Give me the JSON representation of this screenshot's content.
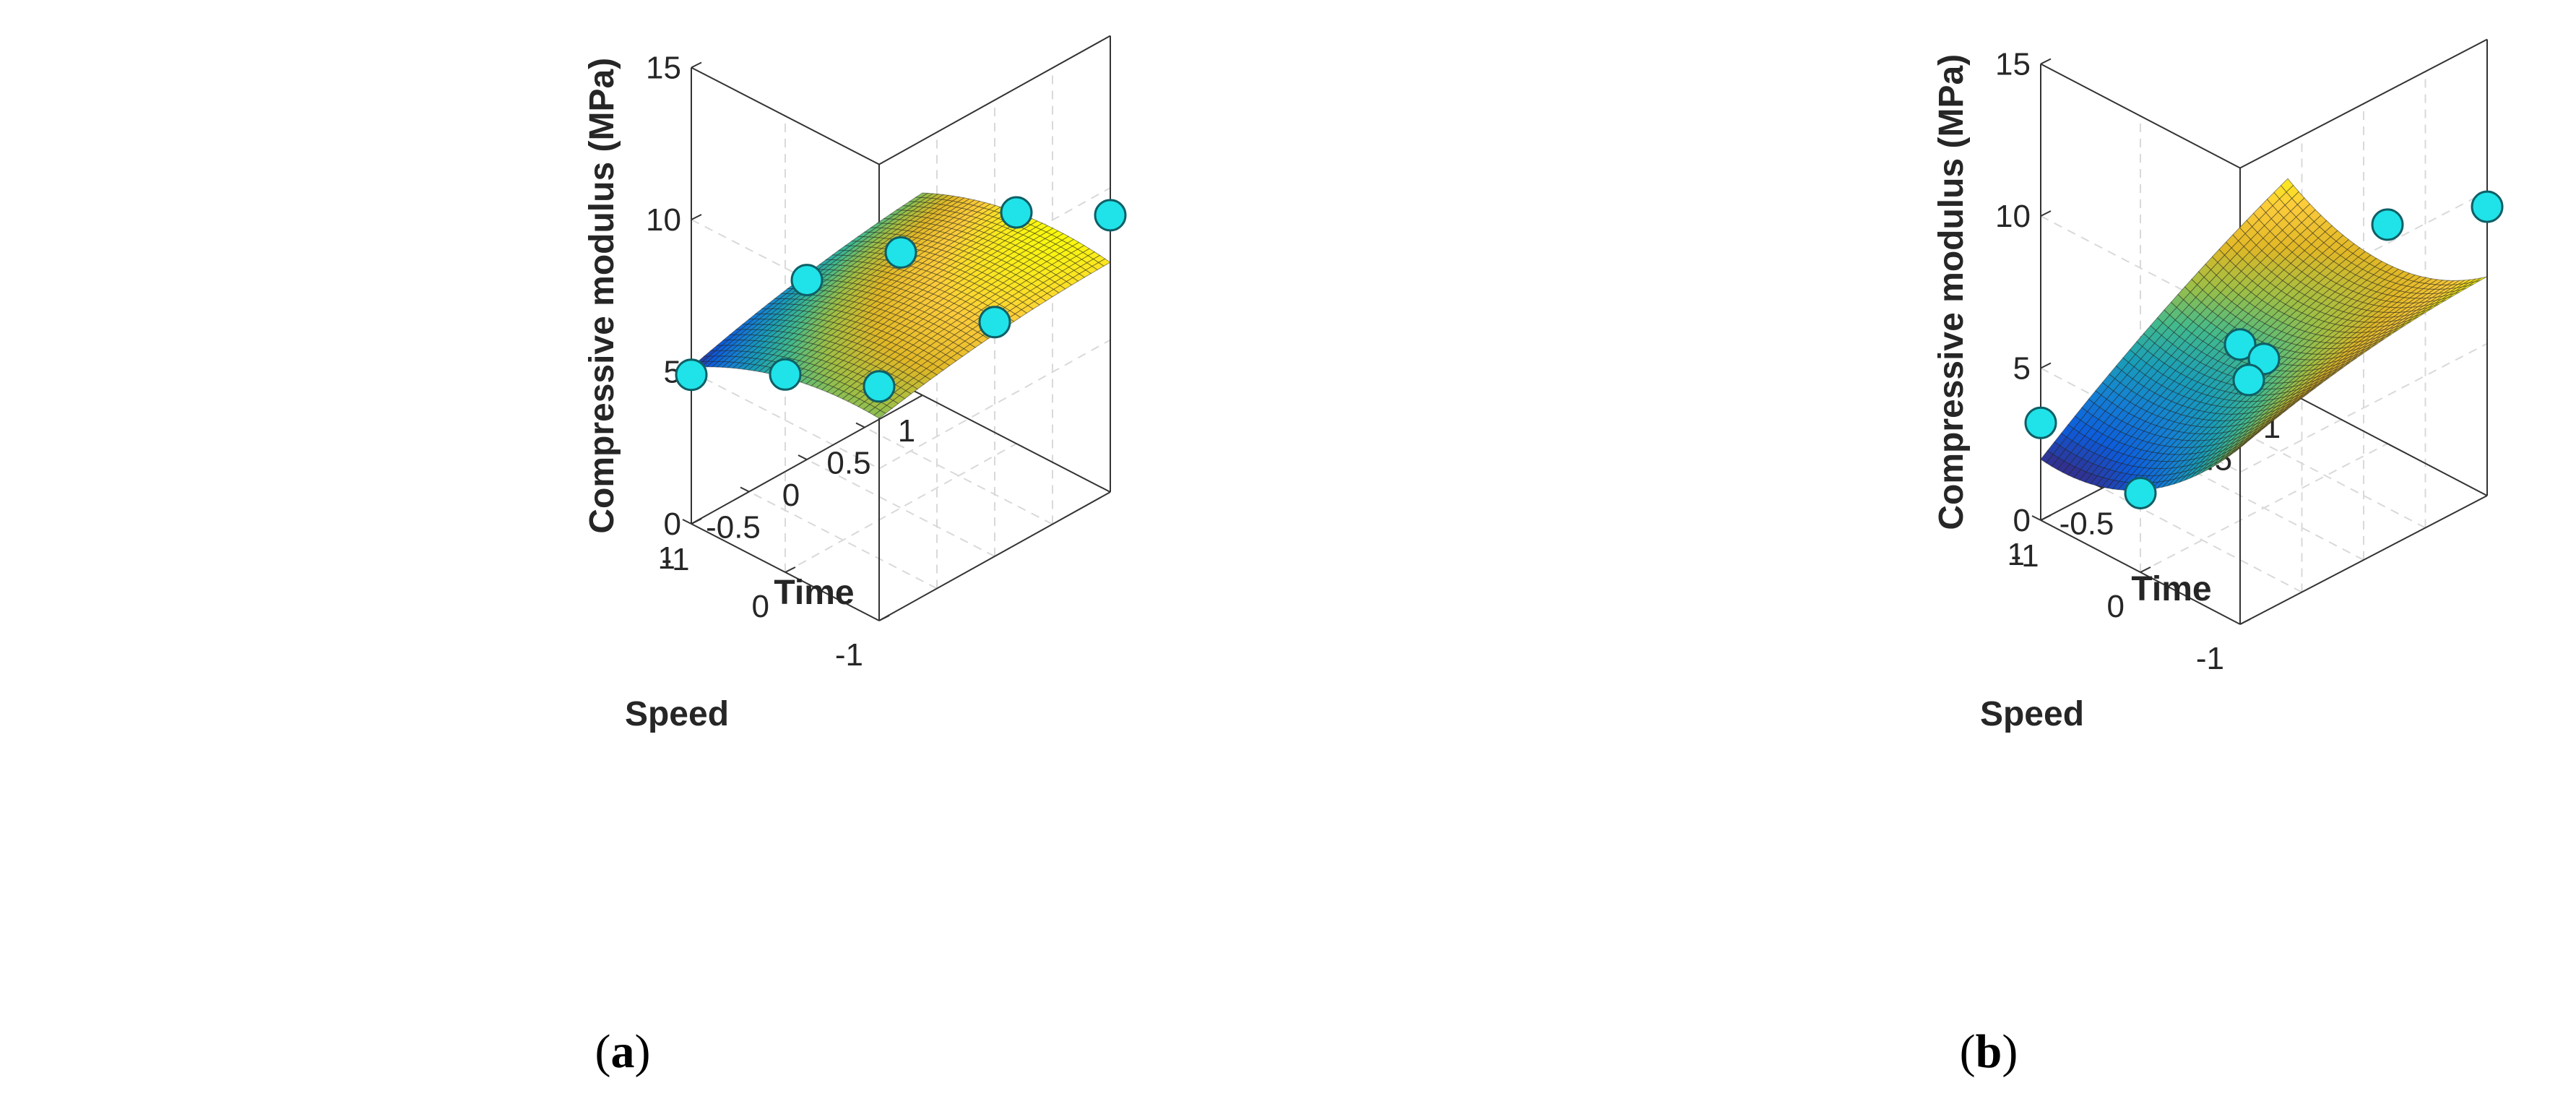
{
  "figure": {
    "panels": [
      "(a)",
      "(b)"
    ]
  },
  "chart_data": [
    {
      "type": "surface",
      "panel": "(a)",
      "caption_letter": "a",
      "zlabel": "Compressive modulus (MPa)",
      "xlabel": "Time",
      "ylabel": "Speed",
      "xlim": [
        -1,
        1
      ],
      "ylim": [
        -1,
        1
      ],
      "zlim": [
        0,
        15
      ],
      "xticks": [
        "-1",
        "-0.5",
        "0",
        "0.5",
        "1"
      ],
      "yticks": [
        "-1",
        "0",
        "1"
      ],
      "zticks": [
        "0",
        "5",
        "10",
        "15"
      ],
      "grid": true,
      "colormap": "parula",
      "surface_coefficients": {
        "b0": 7.2,
        "b_time": 0.6,
        "b_speed": -0.6,
        "b_time_speed": 0.15,
        "b_time2": -0.2,
        "b_speed2": -0.5
      },
      "points": [
        {
          "time": -1,
          "speed": 1,
          "modulus": 4.9
        },
        {
          "time": -1,
          "speed": 0,
          "modulus": 6.5
        },
        {
          "time": -1,
          "speed": -1,
          "modulus": 7.7
        },
        {
          "time": 0,
          "speed": 1,
          "modulus": 5.9
        },
        {
          "time": 0,
          "speed": 0,
          "modulus": 8.4
        },
        {
          "time": 0,
          "speed": -1,
          "modulus": 7.7
        },
        {
          "time": 1,
          "speed": 0,
          "modulus": 7.6
        },
        {
          "time": 1,
          "speed": -1,
          "modulus": 9.1
        }
      ]
    },
    {
      "type": "surface",
      "panel": "(b)",
      "caption_letter": "b",
      "zlabel": "Compressive modulus (MPa)",
      "xlabel": "Time",
      "ylabel": "Speed",
      "xlim": [
        -1,
        1
      ],
      "ylim": [
        -1,
        1
      ],
      "zlim": [
        0,
        15
      ],
      "xticks": [
        "-1",
        "-0.5",
        "0",
        "0.5",
        "1"
      ],
      "yticks": [
        "-1",
        "0",
        "1"
      ],
      "zticks": [
        "0",
        "5",
        "10",
        "15"
      ],
      "grid": true,
      "colormap": "parula",
      "surface_coefficients": {
        "b0": 4.6,
        "b_time": 1.6,
        "b_speed": -1.0,
        "b_time_speed": 0.9,
        "b_time2": -0.3,
        "b_speed2": 1.2
      },
      "points": [
        {
          "time": -1,
          "speed": 1,
          "modulus": 3.2
        },
        {
          "time": -1,
          "speed": 0,
          "modulus": 2.6
        },
        {
          "time": -1,
          "speed": -1,
          "modulus": 9.2
        },
        {
          "time": 0,
          "speed": 0,
          "modulus": 4.9
        },
        {
          "time": 1,
          "speed": 0,
          "modulus": 7.2
        },
        {
          "time": 1,
          "speed": -1,
          "modulus": 9.5
        },
        {
          "time": 0.2,
          "speed": 0.4,
          "modulus": 3.1
        }
      ]
    }
  ]
}
